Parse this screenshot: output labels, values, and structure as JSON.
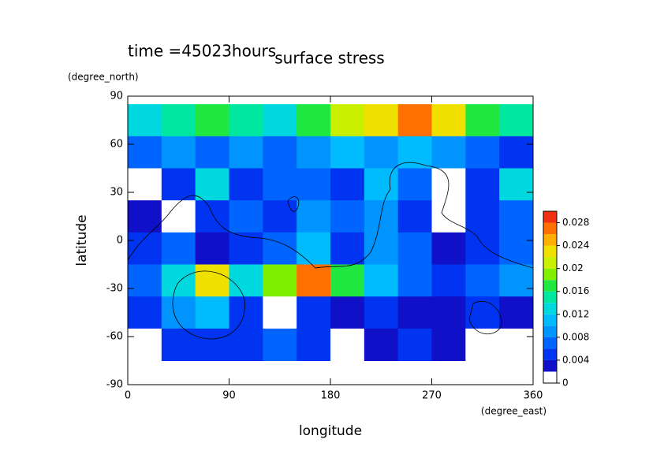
{
  "chart_data": {
    "type": "contour",
    "title": "surface stress",
    "subtitle": "time =45023hours",
    "xlabel": "longitude",
    "xunit": "(degree_east)",
    "ylabel": "latitude",
    "yunit": "(degree_north)",
    "xlim": [
      0,
      360
    ],
    "ylim": [
      -90,
      90
    ],
    "xticks": [
      0,
      90,
      180,
      270,
      360
    ],
    "yticks": [
      -90,
      -60,
      -30,
      0,
      30,
      60,
      90
    ],
    "x_edges": [
      0,
      30,
      60,
      90,
      120,
      150,
      180,
      210,
      240,
      270,
      300,
      330,
      360
    ],
    "y_edges": [
      85,
      65,
      45,
      25,
      5,
      -15,
      -35,
      -55,
      -75
    ],
    "z": [
      [
        0.012,
        0.014,
        0.016,
        0.014,
        0.012,
        0.016,
        0.02,
        0.022,
        0.026,
        0.022,
        0.016,
        0.014
      ],
      [
        0.006,
        0.008,
        0.006,
        0.008,
        0.006,
        0.008,
        0.01,
        0.008,
        0.01,
        0.008,
        0.006,
        0.004
      ],
      [
        0.001,
        0.004,
        0.012,
        0.004,
        0.006,
        0.006,
        0.004,
        0.01,
        0.006,
        0.001,
        0.004,
        0.012
      ],
      [
        0.003,
        0.001,
        0.004,
        0.006,
        0.004,
        0.008,
        0.006,
        0.008,
        0.004,
        0.001,
        0.004,
        0.006
      ],
      [
        0.004,
        0.006,
        0.002,
        0.004,
        0.006,
        0.01,
        0.004,
        0.008,
        0.006,
        0.002,
        0.004,
        0.006
      ],
      [
        0.006,
        0.012,
        0.022,
        0.012,
        0.018,
        0.026,
        0.016,
        0.01,
        0.006,
        0.004,
        0.006,
        0.008
      ],
      [
        0.004,
        0.008,
        0.01,
        0.004,
        0.001,
        0.004,
        0.003,
        0.004,
        0.002,
        0.003,
        0.004,
        0.002
      ],
      [
        0.001,
        0.004,
        0.004,
        0.004,
        0.006,
        0.004,
        0.001,
        0.003,
        0.004,
        0.002,
        0.001,
        0.001
      ]
    ],
    "levels": [
      0,
      0.002,
      0.004,
      0.006,
      0.008,
      0.01,
      0.012,
      0.014,
      0.016,
      0.018,
      0.02,
      0.022,
      0.024,
      0.026,
      0.028,
      0.03
    ],
    "colors": [
      "#ffffff",
      "#1010c8",
      "#0034f0",
      "#0064ff",
      "#0094ff",
      "#00bcff",
      "#00d8e0",
      "#00e8a0",
      "#20e840",
      "#80f000",
      "#c8f000",
      "#f0e000",
      "#ffb000",
      "#ff7000",
      "#f03010"
    ],
    "cticks": [
      0,
      0.004,
      0.008,
      0.012,
      0.016,
      0.02,
      0.024,
      0.028
    ]
  }
}
